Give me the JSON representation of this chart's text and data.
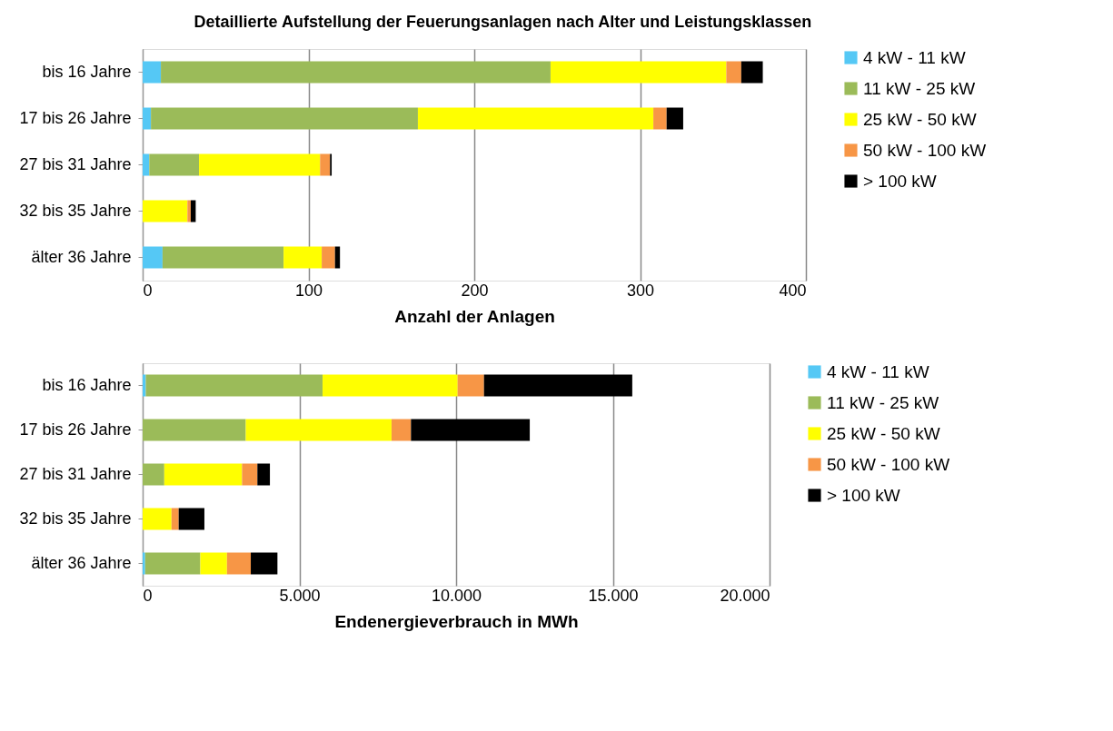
{
  "chart_data": [
    {
      "type": "bar",
      "orientation": "horizontal",
      "stacked": true,
      "title": "Detaillierte Aufstellung der Feuerungsanlagen nach Alter und Leistungsklassen",
      "xlabel": "Anzahl der Anlagen",
      "categories": [
        "bis 16 Jahre",
        "17 bis 26 Jahre",
        "27 bis 31 Jahre",
        "32 bis 35 Jahre",
        "älter 36 Jahre"
      ],
      "series": [
        {
          "name": "4 kW - 11 kW",
          "color": "#55c8f5",
          "values": [
            11,
            5,
            4,
            0,
            12
          ]
        },
        {
          "name": "11 kW - 25 kW",
          "color": "#9bbb59",
          "values": [
            235,
            161,
            30,
            0,
            73
          ]
        },
        {
          "name": "25 kW - 50 kW",
          "color": "#ffff00",
          "values": [
            106,
            142,
            73,
            27,
            23
          ]
        },
        {
          "name": "50 kW - 100 kW",
          "color": "#f79646",
          "values": [
            9,
            8,
            6,
            2,
            8
          ]
        },
        {
          "name": "> 100 kW",
          "color": "#000000",
          "values": [
            13,
            10,
            1,
            3,
            3
          ]
        }
      ],
      "xlim": [
        0,
        400
      ],
      "xticks": [
        0,
        100,
        200,
        300,
        400
      ],
      "grid": "x",
      "legend": "right"
    },
    {
      "type": "bar",
      "orientation": "horizontal",
      "stacked": true,
      "xlabel": "Endenergieverbrauch in MWh",
      "categories": [
        "bis 16 Jahre",
        "17 bis 26 Jahre",
        "27 bis 31 Jahre",
        "32 bis 35 Jahre",
        "älter 36 Jahre"
      ],
      "series": [
        {
          "name": "4 kW - 11 kW",
          "color": "#55c8f5",
          "values": [
            100,
            0,
            0,
            0,
            80
          ]
        },
        {
          "name": "11 kW - 25 kW",
          "color": "#9bbb59",
          "values": [
            5640,
            3290,
            690,
            0,
            1760
          ]
        },
        {
          "name": "25 kW - 50 kW",
          "color": "#ffff00",
          "values": [
            4310,
            4650,
            2480,
            920,
            850
          ]
        },
        {
          "name": "50 kW - 100 kW",
          "color": "#f79646",
          "values": [
            840,
            620,
            490,
            230,
            760
          ]
        },
        {
          "name": "> 100 kW",
          "color": "#000000",
          "values": [
            4730,
            3790,
            400,
            820,
            850
          ]
        }
      ],
      "xlim": [
        0,
        20000
      ],
      "xticks": [
        0,
        {
          "value": 5000,
          "label": "5.000"
        },
        {
          "value": 10000,
          "label": "10.000"
        },
        {
          "value": 15000,
          "label": "15.000"
        },
        {
          "value": 20000,
          "label": "20.000"
        }
      ],
      "grid": "x",
      "legend": "right"
    }
  ]
}
